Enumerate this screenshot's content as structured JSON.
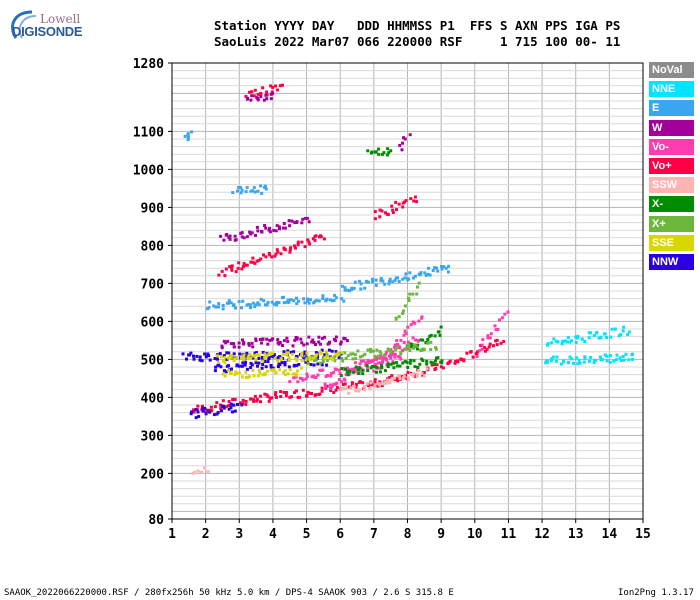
{
  "logo": {
    "line1": "Lowell",
    "line2": "DIGISONDE"
  },
  "header": {
    "line1": "Station YYYY DAY   DDD HHMMSS P1  FFS S AXN PPS IGA PS",
    "line2": "SaoLuis 2022 Mar07 066 220000 RSF     1 715 100 00- 11"
  },
  "footer": {
    "left": "SAAOK_2022066220000.RSF / 280fx256h 50 kHz 5.0 km / DPS-4 SAAOK 903 / 2.6 S 315.8 E",
    "right": "Ion2Png 1.3.17"
  },
  "legend": [
    {
      "label": "NoVal",
      "color": "#8c8c8c"
    },
    {
      "label": "NNE",
      "color": "#00e5ff"
    },
    {
      "label": "E",
      "color": "#3aa6f0"
    },
    {
      "label": "W",
      "color": "#a3009b"
    },
    {
      "label": "Vo-",
      "color": "#ff3cb0"
    },
    {
      "label": "Vo+",
      "color": "#ff0046"
    },
    {
      "label": "SSW",
      "color": "#ffb4b4"
    },
    {
      "label": "X-",
      "color": "#008c00"
    },
    {
      "label": "X+",
      "color": "#6cb83c"
    },
    {
      "label": "SSE",
      "color": "#d8d800"
    },
    {
      "label": "NNW",
      "color": "#2a00e0"
    }
  ],
  "chart_data": {
    "type": "scatter",
    "xlim": [
      1,
      15
    ],
    "ylim": [
      80,
      1280
    ],
    "x_ticks": [
      "1",
      "2",
      "3",
      "4",
      "5",
      "6",
      "7",
      "8",
      "9",
      "10",
      "11",
      "12",
      "13",
      "14",
      "15"
    ],
    "y_ticks": [
      "80",
      "200",
      "300",
      "400",
      "500",
      "600",
      "700",
      "800",
      "900",
      "1000",
      "1100",
      "1280"
    ],
    "grid": true,
    "series": [
      {
        "name": "Vo+",
        "color": "#ff0046",
        "segments": [
          [
            1.6,
            370,
            3.5,
            400
          ],
          [
            3.5,
            400,
            7,
            440
          ],
          [
            7,
            440,
            9.5,
            500
          ],
          [
            9.5,
            500,
            10.8,
            560
          ],
          [
            2.4,
            730,
            5.5,
            830
          ],
          [
            7,
            880,
            8.2,
            930
          ],
          [
            3.2,
            1200,
            4.2,
            1220
          ]
        ]
      },
      {
        "name": "Vo-",
        "color": "#ff3cb0",
        "segments": [
          [
            5.5,
            430,
            8.3,
            560
          ],
          [
            7,
            480,
            8.4,
            620
          ],
          [
            4.5,
            450,
            7.8,
            510
          ],
          [
            10,
            520,
            10.9,
            620
          ]
        ]
      },
      {
        "name": "NNW",
        "color": "#2a00e0",
        "segments": [
          [
            1.5,
            360,
            3,
            380
          ],
          [
            1.3,
            510,
            6,
            520
          ],
          [
            2.2,
            480,
            5.5,
            500
          ]
        ]
      },
      {
        "name": "E",
        "color": "#3aa6f0",
        "segments": [
          [
            2,
            645,
            6,
            665
          ],
          [
            6,
            690,
            9.2,
            745
          ],
          [
            2.8,
            950,
            3.8,
            950
          ],
          [
            1.4,
            1090,
            1.5,
            1100
          ]
        ]
      },
      {
        "name": "W",
        "color": "#a3009b",
        "segments": [
          [
            2.4,
            545,
            6.2,
            555
          ],
          [
            2.4,
            820,
            5,
            870
          ],
          [
            7.7,
            1060,
            8,
            1090
          ],
          [
            3.2,
            1190,
            4,
            1200
          ]
        ]
      },
      {
        "name": "NNE",
        "color": "#00e5ff",
        "segments": [
          [
            12,
            500,
            14.7,
            510
          ],
          [
            12.1,
            545,
            14.5,
            580
          ]
        ]
      },
      {
        "name": "X-",
        "color": "#008c00",
        "segments": [
          [
            6,
            470,
            9,
            500
          ],
          [
            8,
            530,
            9,
            580
          ],
          [
            6.8,
            1045,
            7.5,
            1050
          ]
        ]
      },
      {
        "name": "X+",
        "color": "#6cb83c",
        "segments": [
          [
            5,
            500,
            8.8,
            540
          ],
          [
            7.6,
            600,
            8.3,
            700
          ]
        ]
      },
      {
        "name": "SSE",
        "color": "#d8d800",
        "segments": [
          [
            2.3,
            505,
            6,
            515
          ],
          [
            2.5,
            465,
            4.8,
            470
          ]
        ]
      },
      {
        "name": "SSW",
        "color": "#ffb4b4",
        "segments": [
          [
            6,
            420,
            8.5,
            470
          ],
          [
            1.6,
            200,
            2,
            210
          ]
        ]
      }
    ]
  }
}
